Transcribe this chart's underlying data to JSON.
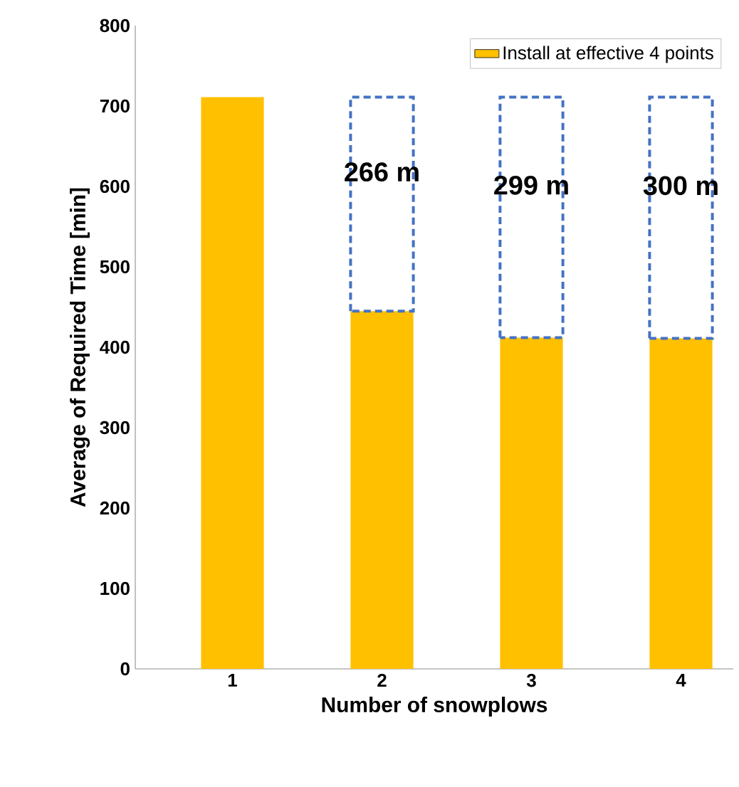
{
  "chart_data": {
    "type": "bar",
    "stacked": true,
    "xlabel": "Number of snowplows",
    "ylabel": "Average of Required Time [min]",
    "categories": [
      "1",
      "2",
      "3",
      "4"
    ],
    "series": [
      {
        "name": "Install at effective 4 points",
        "color": "#ffc000",
        "values": [
          711,
          445,
          412,
          411
        ]
      },
      {
        "color": "#4472c4",
        "line_style": "dashed",
        "values": [
          null,
          266,
          299,
          300
        ],
        "value_labels": [
          null,
          "266 m",
          "299 m",
          "300 m"
        ]
      }
    ],
    "ylim": [
      0,
      800
    ],
    "yticks": [
      0,
      100,
      200,
      300,
      400,
      500,
      600,
      700,
      800
    ],
    "grid": false,
    "legend": "top right"
  }
}
